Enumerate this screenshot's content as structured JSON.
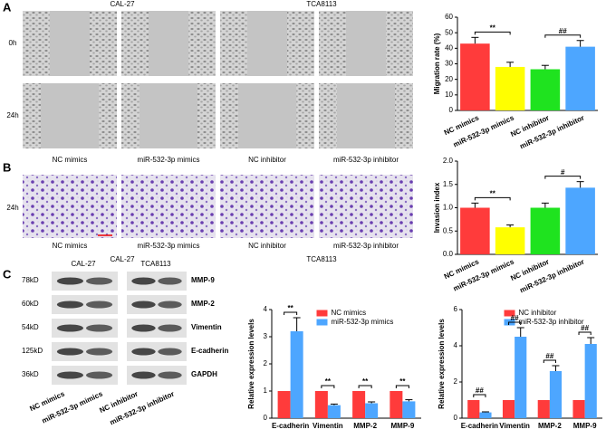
{
  "panel_a": {
    "label": "A",
    "cell_lines": [
      "CAL-27",
      "TCA8113"
    ],
    "rows": [
      "0h",
      "24h"
    ],
    "groups": [
      "NC mimics",
      "miR-532-3p mimics",
      "NC inhibitor",
      "miR-532-3p inhibitor"
    ]
  },
  "panel_b": {
    "label": "B",
    "cell_lines": [
      "CAL-27",
      "TCA8113"
    ],
    "rows": [
      "24h"
    ],
    "groups": [
      "NC mimics",
      "miR-532-3p mimics",
      "NC inhibitor",
      "miR-532-3p inhibitor"
    ]
  },
  "panel_c": {
    "label": "C",
    "cell_lines": [
      "CAL-27",
      "TCA8113"
    ],
    "sizes": [
      "78kD",
      "60kD",
      "54kD",
      "125kD",
      "36kD"
    ],
    "proteins": [
      "MMP-9",
      "MMP-2",
      "Vimentin",
      "E-cadherin",
      "GAPDH"
    ],
    "lanes": [
      "NC mimics",
      "miR-532-3p mimics",
      "NC inhibitor",
      "miR-532-3p inhibitor"
    ]
  },
  "chart_data": [
    {
      "type": "bar",
      "ylabel": "Migration rate (%)",
      "categories": [
        "NC mimics",
        "miR-532-3p mimics",
        "NC inhibitor",
        "miR-532-3p inhibitor"
      ],
      "values": [
        43,
        28,
        26.5,
        41
      ],
      "errors": [
        4,
        3,
        2.5,
        4
      ],
      "colors": [
        "#ff3b3b",
        "#ffff00",
        "#1fe31f",
        "#4da6ff"
      ],
      "ylim": [
        0,
        60
      ],
      "yticks": [
        0,
        10,
        20,
        30,
        40,
        50,
        60
      ],
      "significance": [
        "**",
        "##"
      ]
    },
    {
      "type": "bar",
      "ylabel": "Invasion index",
      "categories": [
        "NC mimics",
        "miR-532-3p mimics",
        "NC inhibitor",
        "miR-532-3p inhibitor"
      ],
      "values": [
        1.0,
        0.58,
        1.0,
        1.43
      ],
      "errors": [
        0.1,
        0.05,
        0.1,
        0.13
      ],
      "colors": [
        "#ff3b3b",
        "#ffff00",
        "#1fe31f",
        "#4da6ff"
      ],
      "ylim": [
        0,
        2
      ],
      "yticks": [
        {
          "value": 0,
          "label": "0.0"
        },
        0.5,
        {
          "value": 1,
          "label": "1.0"
        },
        1.5,
        {
          "value": 2,
          "label": "2.0"
        }
      ],
      "significance": [
        "**",
        "#"
      ]
    },
    {
      "type": "grouped_bar",
      "ylabel": "Relative expression levels",
      "categories": [
        "E-cadherin",
        "Vimentin",
        "MMP-2",
        "MMP-9"
      ],
      "series": [
        {
          "name": "NC mimics",
          "color": "#ff3b3b",
          "values": [
            1,
            1,
            1,
            1
          ],
          "errors": [
            0,
            0,
            0,
            0
          ]
        },
        {
          "name": "miR-532-3p mimics",
          "color": "#4da6ff",
          "values": [
            3.2,
            0.48,
            0.55,
            0.62
          ],
          "errors": [
            0.5,
            0.04,
            0.05,
            0.06
          ]
        }
      ],
      "ylim": [
        0,
        4
      ],
      "yticks": [
        0,
        1,
        2,
        3,
        4
      ],
      "legend": "upper right",
      "significance": [
        "**",
        "**",
        "**",
        "**"
      ]
    },
    {
      "type": "grouped_bar",
      "ylabel": "Relative expression levels",
      "categories": [
        "E-cadherin",
        "Vimentin",
        "MMP-2",
        "MMP-9"
      ],
      "series": [
        {
          "name": "NC inhibitor",
          "color": "#ff3b3b",
          "values": [
            1,
            1,
            1,
            1
          ],
          "errors": [
            0,
            0,
            0,
            0
          ]
        },
        {
          "name": "miR-532-3p inhibitor",
          "color": "#4da6ff",
          "values": [
            0.32,
            4.5,
            2.6,
            4.1
          ],
          "errors": [
            0.03,
            0.5,
            0.3,
            0.35
          ]
        }
      ],
      "ylim": [
        0,
        6
      ],
      "yticks": [
        0,
        2,
        4,
        6
      ],
      "legend": "upper right",
      "significance": [
        "##",
        "##",
        "##",
        "##"
      ]
    }
  ]
}
